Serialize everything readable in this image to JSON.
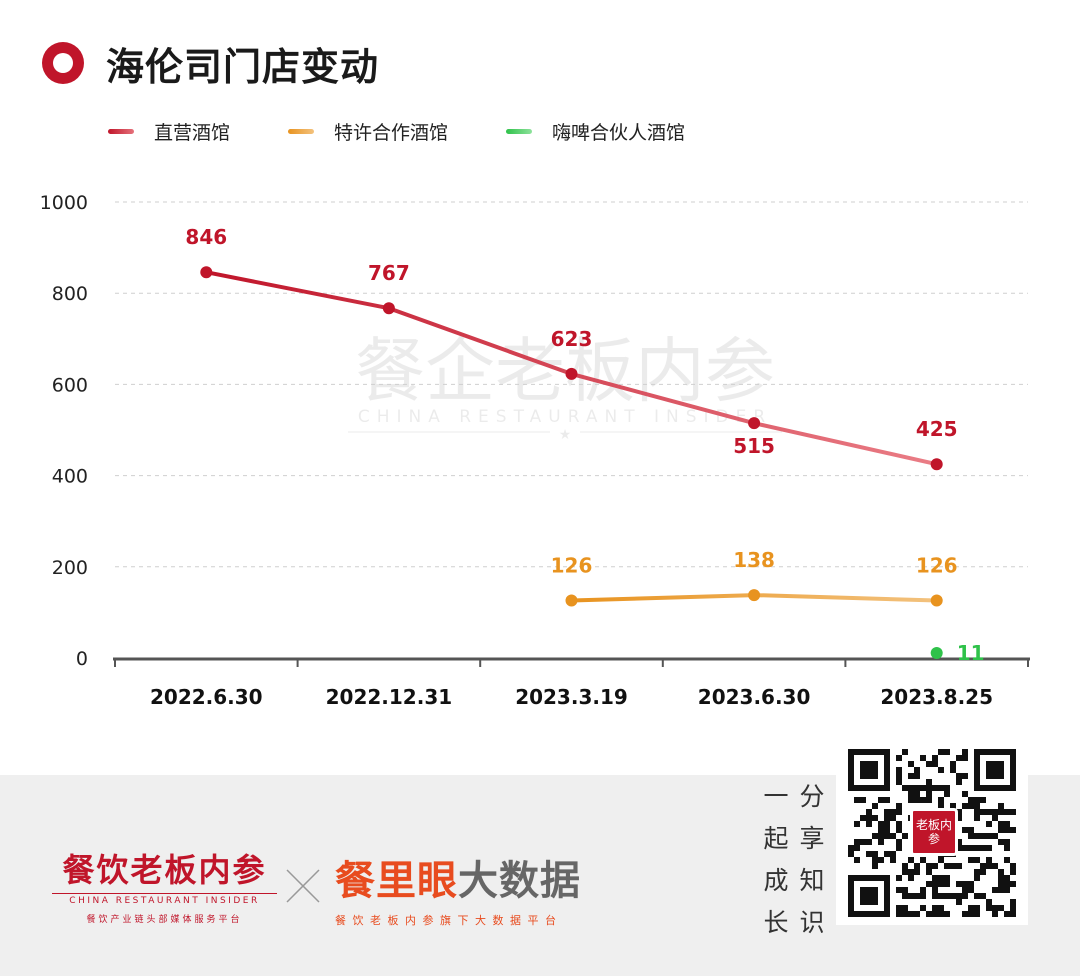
{
  "title": "海伦司门店变动",
  "legend": [
    {
      "label": "直营酒馆",
      "color": "#c0152a"
    },
    {
      "label": "特许合作酒馆",
      "color": "#e8931f"
    },
    {
      "label": "嗨啤合伙人酒馆",
      "color": "#2fc24a"
    }
  ],
  "watermark": {
    "cn": "餐企老板内参",
    "en": "CHINA RESTAURANT INSIDER"
  },
  "chart_data": {
    "type": "line",
    "title": "海伦司门店变动",
    "categories": [
      "2022.6.30",
      "2022.12.31",
      "2023.3.19",
      "2023.6.30",
      "2023.8.25"
    ],
    "ylim": [
      0,
      1000
    ],
    "yticks": [
      0,
      200,
      400,
      600,
      800,
      1000
    ],
    "grid": true,
    "legend_position": "top-left",
    "series": [
      {
        "name": "直营酒馆",
        "color": "#c0152a",
        "values": [
          846,
          767,
          623,
          515,
          425
        ]
      },
      {
        "name": "特许合作酒馆",
        "color": "#e8931f",
        "values": [
          null,
          null,
          126,
          138,
          126
        ]
      },
      {
        "name": "嗨啤合伙人酒馆",
        "color": "#2fc24a",
        "values": [
          null,
          null,
          null,
          null,
          11
        ]
      }
    ]
  },
  "footer": {
    "brand1_main": "餐饮老板内参",
    "brand1_en": "CHINA RESTAURANT INSIDER",
    "brand1_sub": "餐饮产业链头部媒体服务平台",
    "brand2_red": "餐里眼",
    "brand2_gray": "大数据",
    "brand2_sub": "餐饮老板内参旗下大数据平台",
    "slogan": [
      "一",
      "分",
      "起",
      "享",
      "成",
      "知",
      "长",
      "识"
    ],
    "qr_badge": "老板内参"
  }
}
